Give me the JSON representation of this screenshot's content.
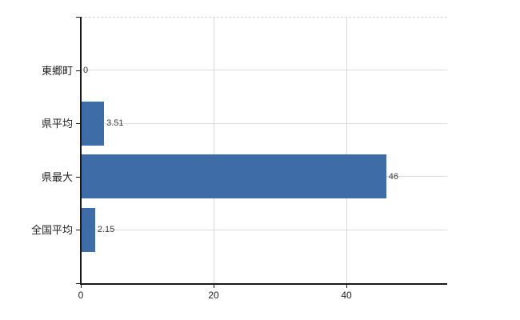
{
  "chart_data": {
    "type": "bar",
    "orientation": "horizontal",
    "title": "",
    "categories": [
      "東郷町",
      "県平均",
      "県最大",
      "全国平均"
    ],
    "values": [
      0,
      3.51,
      46,
      2.15
    ],
    "value_labels": [
      "0",
      "3.51",
      "46",
      "2.15"
    ],
    "x_ticks": [
      0,
      20,
      40
    ],
    "x_tick_labels": [
      "0",
      "20",
      "40"
    ],
    "xlim": [
      0,
      55.2
    ],
    "xlabel": "",
    "ylabel": "",
    "grid": true,
    "legend": false,
    "colors": {
      "bar": "#3e6ca7",
      "axis": "#1a1a1a",
      "gridline_h": "#d6ded6",
      "gridline_v": "#ded8de",
      "plot_top_border": "#d9d2d9",
      "label_text": "#222222",
      "value_text": "#3a3a3a",
      "background": "#ffffff"
    }
  }
}
